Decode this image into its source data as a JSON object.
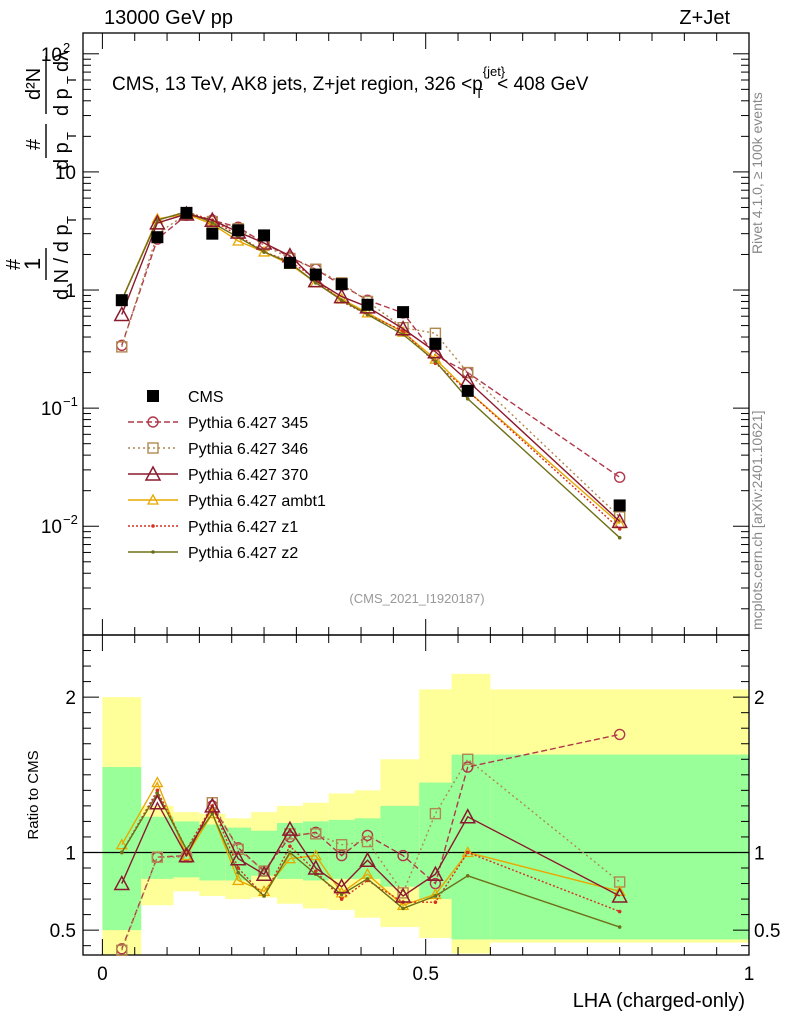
{
  "header": {
    "left": "13000 GeV pp",
    "right": "Z+Jet"
  },
  "side": {
    "rivet": "Rivet 4.1.0, ≥ 100k events",
    "mcplots": "mcplots.cern.ch [arXiv:2401.10621]"
  },
  "colors": {
    "cms": "#000000",
    "p345": "#b0384a",
    "p346": "#b08850",
    "p370": "#8b1a2e",
    "ambt1": "#e8a800",
    "z1": "#d43020",
    "z2": "#6e7018",
    "band_outer": "#ffff99",
    "band_inner": "#99ff99"
  },
  "chart_data": [
    {
      "type": "line",
      "panel": "main",
      "title": "CMS, 13 TeV, AK8 jets, Z+jet region, 326 <p_T^{jet}< 408 GeV",
      "ylabel": "1/dN/dp_T  d²N/dp_T dλ",
      "yscale": "log",
      "ylim": [
        0.0012,
        150
      ],
      "xlim": [
        -0.03,
        1.0
      ],
      "ytick_labels": [
        "10^-2",
        "10^-1",
        "1",
        "10",
        "10^2"
      ],
      "watermark": "(CMS_2021_I1920187)",
      "x": [
        0.03,
        0.085,
        0.13,
        0.17,
        0.21,
        0.25,
        0.29,
        0.33,
        0.37,
        0.41,
        0.465,
        0.515,
        0.565,
        0.8
      ],
      "series": [
        {
          "name": "CMS",
          "key": "cms",
          "values": [
            0.82,
            2.8,
            4.5,
            3.0,
            3.2,
            2.9,
            1.7,
            1.35,
            1.12,
            0.75,
            0.65,
            0.35,
            0.14,
            0.015
          ]
        },
        {
          "name": "Pythia 6.427 345",
          "key": "p345",
          "values": [
            0.34,
            2.7,
            4.3,
            3.9,
            3.4,
            2.5,
            1.9,
            1.5,
            1.1,
            0.82,
            0.64,
            0.28,
            0.2,
            0.026
          ]
        },
        {
          "name": "Pythia 6.427 346",
          "key": "p346",
          "values": [
            0.33,
            3.0,
            4.4,
            3.8,
            3.3,
            2.4,
            1.85,
            1.5,
            1.15,
            0.8,
            0.48,
            0.43,
            0.2,
            0.012
          ]
        },
        {
          "name": "Pythia 6.427 370",
          "key": "p370",
          "values": [
            0.62,
            3.7,
            4.4,
            3.9,
            3.1,
            2.5,
            1.95,
            1.2,
            0.88,
            0.72,
            0.47,
            0.3,
            0.17,
            0.011
          ]
        },
        {
          "name": "Pythia 6.427 ambt1",
          "key": "ambt1",
          "values": [
            0.82,
            4.0,
            4.4,
            3.6,
            2.6,
            2.1,
            1.65,
            1.15,
            0.84,
            0.64,
            0.44,
            0.26,
            0.14,
            0.0105
          ]
        },
        {
          "name": "Pythia 6.427 z1",
          "key": "z1",
          "values": [
            0.82,
            3.9,
            4.6,
            3.9,
            2.9,
            2.1,
            1.75,
            1.25,
            0.8,
            0.62,
            0.45,
            0.24,
            0.14,
            0.0095
          ]
        },
        {
          "name": "Pythia 6.427 z2",
          "key": "z2",
          "values": [
            0.82,
            3.9,
            4.6,
            3.7,
            2.8,
            2.1,
            1.7,
            1.15,
            0.82,
            0.62,
            0.42,
            0.25,
            0.12,
            0.008
          ]
        }
      ]
    },
    {
      "type": "line",
      "panel": "ratio",
      "ylabel": "Ratio to CMS",
      "xlabel": "LHA (charged-only)",
      "ylim": [
        0.34,
        2.4
      ],
      "xlim": [
        -0.03,
        1.0
      ],
      "ytick_labels": [
        "0.5",
        "1",
        "2"
      ],
      "xtick_labels": [
        "0",
        "0.5",
        "1"
      ],
      "x": [
        0.03,
        0.085,
        0.13,
        0.17,
        0.21,
        0.25,
        0.29,
        0.33,
        0.37,
        0.41,
        0.465,
        0.515,
        0.565,
        0.8
      ],
      "bands": {
        "edges": [
          0.0,
          0.06,
          0.11,
          0.15,
          0.19,
          0.23,
          0.27,
          0.31,
          0.35,
          0.39,
          0.43,
          0.49,
          0.54,
          0.6,
          1.0
        ],
        "inner_lo": [
          0.5,
          0.83,
          0.84,
          0.82,
          0.82,
          0.85,
          0.83,
          0.82,
          0.83,
          0.83,
          0.78,
          0.7,
          0.44,
          0.44
        ],
        "inner_hi": [
          1.55,
          1.23,
          1.2,
          1.18,
          1.16,
          1.14,
          1.19,
          1.2,
          1.21,
          1.22,
          1.3,
          1.45,
          1.63,
          1.63
        ],
        "outer_lo": [
          0.33,
          0.66,
          0.75,
          0.72,
          0.7,
          0.71,
          0.67,
          0.64,
          0.63,
          0.58,
          0.52,
          0.45,
          0.35,
          0.42
        ],
        "outer_hi": [
          2.0,
          1.3,
          1.26,
          1.25,
          1.22,
          1.26,
          1.3,
          1.32,
          1.38,
          1.4,
          1.6,
          2.05,
          2.15,
          2.05
        ]
      },
      "series": [
        {
          "name": "Pythia 6.427 345",
          "key": "p345",
          "values": [
            0.38,
            0.97,
            0.98,
            1.3,
            1.03,
            0.88,
            1.1,
            1.13,
            0.98,
            1.11,
            0.98,
            0.8,
            1.55,
            1.76
          ]
        },
        {
          "name": "Pythia 6.427 346",
          "key": "p346",
          "values": [
            0.37,
            0.97,
            0.97,
            1.32,
            1.02,
            0.88,
            1.12,
            1.12,
            1.05,
            1.07,
            0.74,
            1.25,
            1.6,
            0.81
          ]
        },
        {
          "name": "Pythia 6.427 370",
          "key": "p370",
          "values": [
            0.8,
            1.32,
            0.98,
            1.3,
            0.96,
            0.86,
            1.15,
            0.9,
            0.78,
            0.95,
            0.72,
            0.86,
            1.23,
            0.72
          ]
        },
        {
          "name": "Pythia 6.427 ambt1",
          "key": "ambt1",
          "values": [
            1.05,
            1.45,
            0.98,
            1.25,
            0.82,
            0.75,
            0.96,
            0.98,
            0.74,
            0.86,
            0.66,
            0.73,
            1.0,
            0.75
          ]
        },
        {
          "name": "Pythia 6.427 z1",
          "key": "z1",
          "values": [
            1.0,
            1.4,
            1.02,
            1.3,
            0.9,
            0.72,
            1.04,
            0.88,
            0.7,
            0.82,
            0.68,
            0.68,
            1.0,
            0.62
          ]
        },
        {
          "name": "Pythia 6.427 z2",
          "key": "z2",
          "values": [
            1.0,
            1.38,
            1.02,
            1.25,
            0.87,
            0.72,
            1.0,
            0.86,
            0.73,
            0.83,
            0.64,
            0.72,
            0.85,
            0.52
          ]
        }
      ]
    }
  ]
}
